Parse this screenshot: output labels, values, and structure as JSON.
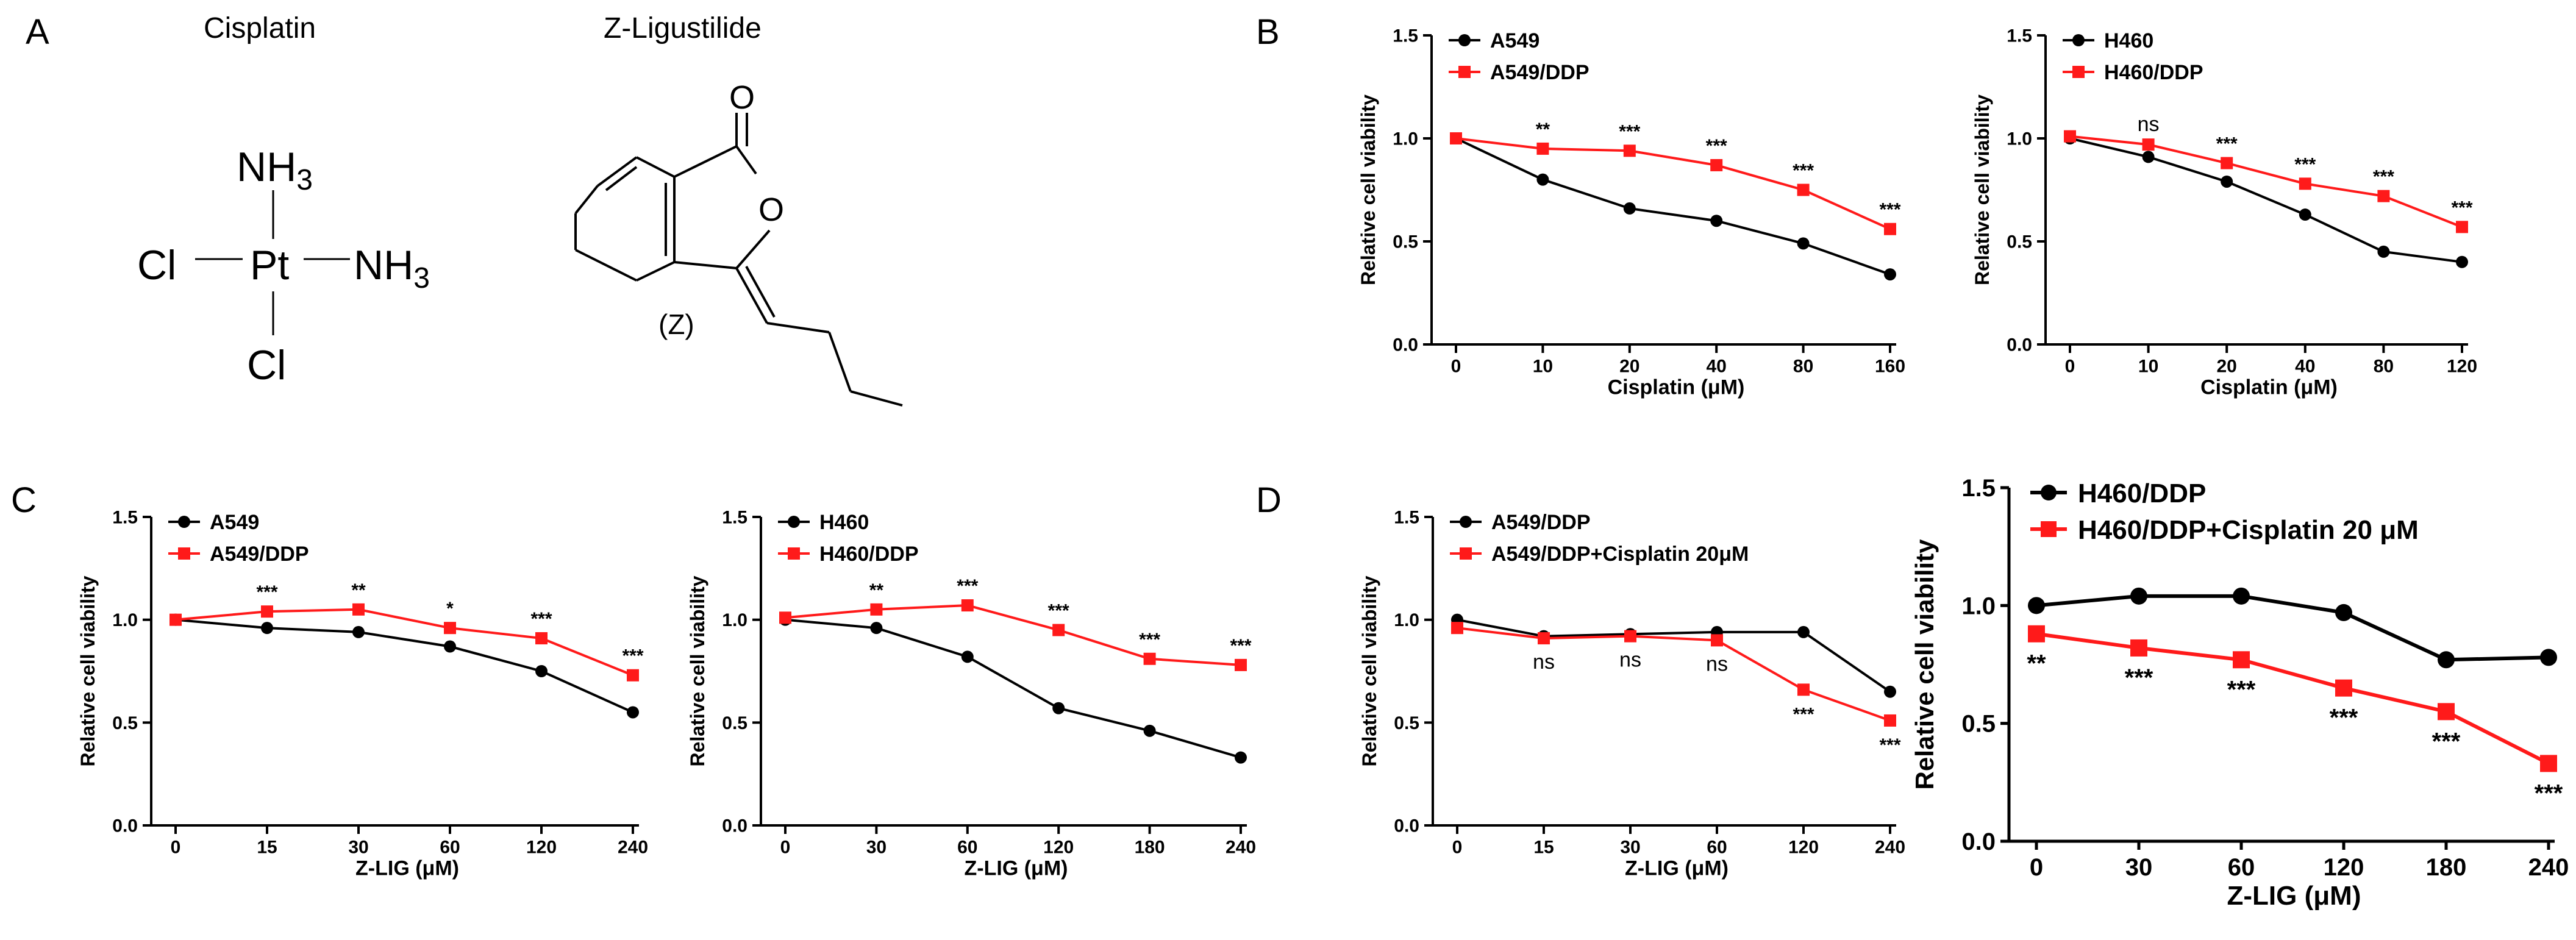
{
  "panels": {
    "A": "A",
    "B": "B",
    "C": "C",
    "D": "D"
  },
  "chemistry": {
    "cisplatin_title": "Cisplatin",
    "ligustilide_title": "Z-Ligustilide",
    "nh3": "NH",
    "sub3": "3",
    "pt": "Pt",
    "cl": "Cl",
    "oxygen": "O",
    "z_label": "(Z)"
  },
  "colors": {
    "control": "#000000",
    "treated": "#ff1a1a"
  },
  "chart_data": [
    {
      "type": "line",
      "panel": "B",
      "xlabel": "Cisplatin (μM)",
      "ylabel": "Relative cell viability",
      "categories": [
        "0",
        "10",
        "20",
        "40",
        "80",
        "160"
      ],
      "ylim": [
        0,
        1.5
      ],
      "yticks": [
        "0.0",
        "0.5",
        "1.0",
        "1.5"
      ],
      "legend_position": "top-left",
      "series": [
        {
          "name": "A549",
          "values": [
            1.0,
            0.8,
            0.66,
            0.6,
            0.49,
            0.34
          ]
        },
        {
          "name": "A549/DDP",
          "values": [
            1.0,
            0.95,
            0.94,
            0.87,
            0.75,
            0.56
          ]
        }
      ],
      "annotations": [
        "",
        "**",
        "***",
        "***",
        "***",
        "***"
      ]
    },
    {
      "type": "line",
      "panel": "B",
      "xlabel": "Cisplatin (μM)",
      "ylabel": "Relative cell viability",
      "categories": [
        "0",
        "10",
        "20",
        "40",
        "80",
        "120"
      ],
      "ylim": [
        0,
        1.5
      ],
      "yticks": [
        "0.0",
        "0.5",
        "1.0",
        "1.5"
      ],
      "legend_position": "top-left",
      "series": [
        {
          "name": "H460",
          "values": [
            1.0,
            0.91,
            0.79,
            0.63,
            0.45,
            0.4
          ]
        },
        {
          "name": "H460/DDP",
          "values": [
            1.01,
            0.97,
            0.88,
            0.78,
            0.72,
            0.57
          ]
        }
      ],
      "annotations": [
        "",
        "ns",
        "***",
        "***",
        "***",
        "***"
      ]
    },
    {
      "type": "line",
      "panel": "C",
      "xlabel": "Z-LIG (μM)",
      "ylabel": "Relative cell viability",
      "categories": [
        "0",
        "15",
        "30",
        "60",
        "120",
        "240"
      ],
      "ylim": [
        0,
        1.5
      ],
      "yticks": [
        "0.0",
        "0.5",
        "1.0",
        "1.5"
      ],
      "legend_position": "top-left",
      "series": [
        {
          "name": "A549",
          "values": [
            1.0,
            0.96,
            0.94,
            0.87,
            0.75,
            0.55
          ]
        },
        {
          "name": "A549/DDP",
          "values": [
            1.0,
            1.04,
            1.05,
            0.96,
            0.91,
            0.73
          ]
        }
      ],
      "annotations": [
        "",
        "***",
        "**",
        "*",
        "***",
        "***"
      ]
    },
    {
      "type": "line",
      "panel": "C",
      "xlabel": "Z-LIG (μM)",
      "ylabel": "Relative cell viability",
      "categories": [
        "0",
        "30",
        "60",
        "120",
        "180",
        "240"
      ],
      "ylim": [
        0,
        1.5
      ],
      "yticks": [
        "0.0",
        "0.5",
        "1.0",
        "1.5"
      ],
      "legend_position": "top-left",
      "series": [
        {
          "name": "H460",
          "values": [
            1.0,
            0.96,
            0.82,
            0.57,
            0.46,
            0.33
          ]
        },
        {
          "name": "H460/DDP",
          "values": [
            1.01,
            1.05,
            1.07,
            0.95,
            0.81,
            0.78
          ]
        }
      ],
      "annotations": [
        "",
        "**",
        "***",
        "***",
        "***",
        "***"
      ]
    },
    {
      "type": "line",
      "panel": "D",
      "xlabel": "Z-LIG (μM)",
      "ylabel": "Relative cell viability",
      "categories": [
        "0",
        "15",
        "30",
        "60",
        "120",
        "240"
      ],
      "ylim": [
        0,
        1.5
      ],
      "yticks": [
        "0.0",
        "0.5",
        "1.0",
        "1.5"
      ],
      "legend_position": "top-left",
      "series": [
        {
          "name": "A549/DDP",
          "values": [
            1.0,
            0.92,
            0.93,
            0.94,
            0.94,
            0.65
          ]
        },
        {
          "name": "A549/DDP+Cisplatin 20μM",
          "values": [
            0.96,
            0.91,
            0.92,
            0.9,
            0.66,
            0.51
          ]
        }
      ],
      "annotations": [
        "",
        "ns",
        "ns",
        "ns",
        "***",
        "***"
      ]
    },
    {
      "type": "line",
      "panel": "D",
      "xlabel": "Z-LIG (μM)",
      "ylabel": "Relative cell viability",
      "categories": [
        "0",
        "30",
        "60",
        "120",
        "180",
        "240"
      ],
      "ylim": [
        0,
        1.5
      ],
      "yticks": [
        "0.0",
        "0.5",
        "1.0",
        "1.5"
      ],
      "legend_position": "top-left",
      "series": [
        {
          "name": "H460/DDP",
          "values": [
            1.0,
            1.04,
            1.04,
            0.97,
            0.77,
            0.78
          ]
        },
        {
          "name": "H460/DDP+Cisplatin 20 μM",
          "values": [
            0.88,
            0.82,
            0.77,
            0.65,
            0.55,
            0.33
          ]
        }
      ],
      "annotations": [
        "**",
        "***",
        "***",
        "***",
        "***",
        "***"
      ]
    }
  ]
}
